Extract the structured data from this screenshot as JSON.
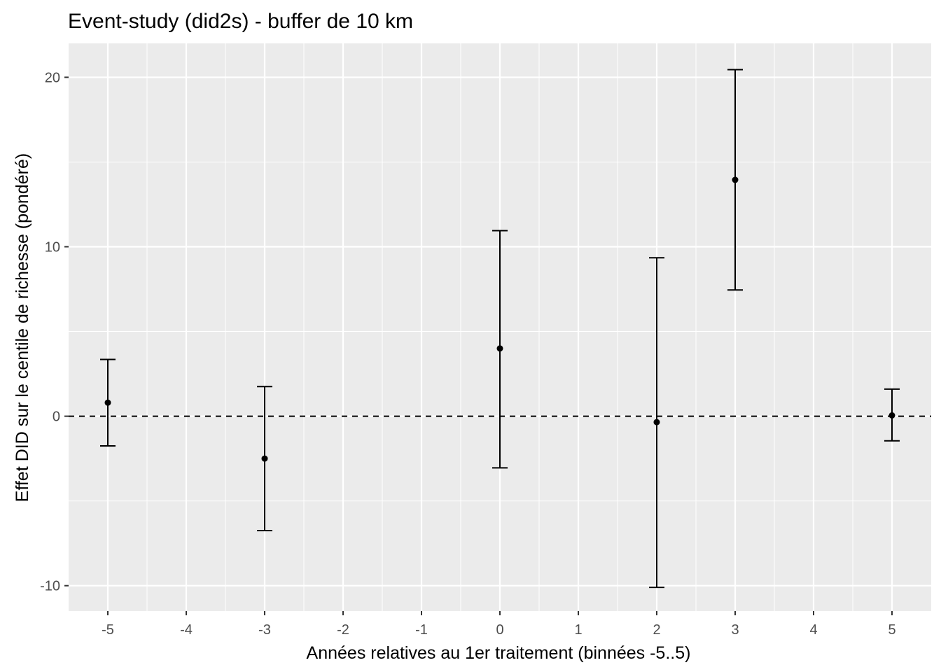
{
  "chart_data": {
    "type": "scatter",
    "title": "Event-study (did2s) - buffer de 10 km",
    "xlabel": "Années relatives au 1er traitement (binnées -5..5)",
    "ylabel": "Effet DID sur le centile de richesse (pondéré)",
    "xlim": [
      -5.5,
      5.5
    ],
    "ylim": [
      -11.5,
      22
    ],
    "x_ticks": [
      -5,
      -4,
      -3,
      -2,
      -1,
      0,
      1,
      2,
      3,
      4,
      5
    ],
    "x_tick_labels": [
      "-5",
      "-4",
      "-3",
      "-2",
      "-1",
      "0",
      "1",
      "2",
      "3",
      "4",
      "5"
    ],
    "y_ticks": [
      -10,
      0,
      10,
      20
    ],
    "y_tick_labels": [
      "-10",
      "0",
      "10",
      "20"
    ],
    "reference_line": {
      "y": 0,
      "style": "dashed"
    },
    "grid": true,
    "series": [
      {
        "points": [
          {
            "x": -5,
            "y": 0.8,
            "lower": -1.75,
            "upper": 3.35
          },
          {
            "x": -3,
            "y": -2.5,
            "lower": -6.75,
            "upper": 1.75
          },
          {
            "x": 0,
            "y": 4.0,
            "lower": -3.05,
            "upper": 10.95
          },
          {
            "x": 2,
            "y": -0.35,
            "lower": -10.1,
            "upper": 9.35
          },
          {
            "x": 3,
            "y": 13.95,
            "lower": 7.45,
            "upper": 20.45
          },
          {
            "x": 5,
            "y": 0.05,
            "lower": -1.45,
            "upper": 1.6
          }
        ]
      }
    ],
    "colors": {
      "panel_background": "#ebebeb",
      "grid_line": "#ffffff",
      "point": "#000000",
      "tick_label": "#4d4d4d"
    }
  }
}
